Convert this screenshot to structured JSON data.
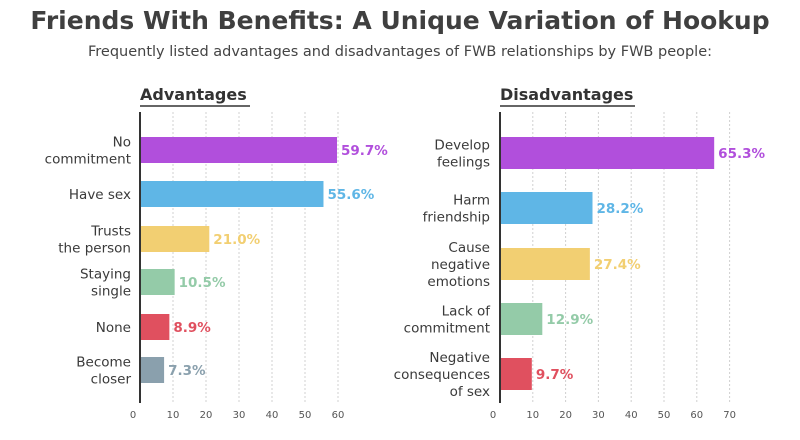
{
  "header": {
    "title": "Friends With Benefits: A Unique Variation of Hookup",
    "subtitle": "Frequently listed advantages and disadvantages of FWB relationships by FWB people:"
  },
  "chart_data": [
    {
      "type": "bar",
      "orientation": "horizontal",
      "title": "Advantages",
      "categories": [
        [
          "No",
          "commitment"
        ],
        [
          "Have sex"
        ],
        [
          "Trusts",
          "the person"
        ],
        [
          "Staying",
          "single"
        ],
        [
          "None"
        ],
        [
          "Become",
          "closer"
        ]
      ],
      "values": [
        59.7,
        55.6,
        21.0,
        10.5,
        8.9,
        7.3
      ],
      "value_labels": [
        "59.7%",
        "55.6%",
        "21.0%",
        "10.5%",
        "8.9%",
        "7.3%"
      ],
      "colors": [
        "#b14fdc",
        "#5fb6e6",
        "#f2cf72",
        "#94cba8",
        "#e0505f",
        "#8aa0ad"
      ],
      "xlim": [
        0,
        60
      ],
      "ticks": [
        0,
        10,
        20,
        30,
        40,
        50,
        60
      ],
      "grid": true
    },
    {
      "type": "bar",
      "orientation": "horizontal",
      "title": "Disadvantages",
      "categories": [
        [
          "Develop",
          "feelings"
        ],
        [
          "Harm",
          "friendship"
        ],
        [
          "Cause",
          "negative",
          "emotions"
        ],
        [
          "Lack of",
          "commitment"
        ],
        [
          "Negative",
          "consequences",
          "of sex"
        ]
      ],
      "values": [
        65.3,
        28.2,
        27.4,
        12.9,
        9.7
      ],
      "value_labels": [
        "65.3%",
        "28.2%",
        "27.4%",
        "12.9%",
        "9.7%"
      ],
      "colors": [
        "#b14fdc",
        "#5fb6e6",
        "#f2cf72",
        "#94cba8",
        "#e0505f"
      ],
      "xlim": [
        0,
        70
      ],
      "ticks": [
        0,
        10,
        20,
        30,
        40,
        50,
        60,
        70
      ],
      "grid": true
    }
  ]
}
